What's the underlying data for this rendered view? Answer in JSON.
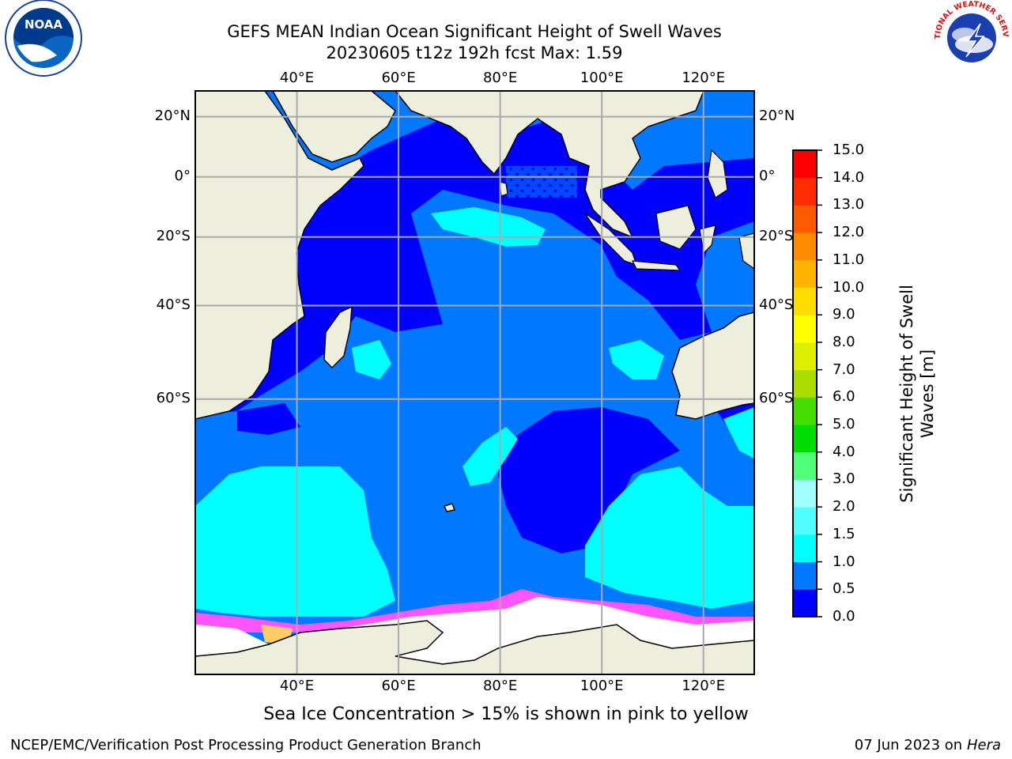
{
  "title": {
    "line1": "GEFS MEAN Indian Ocean Significant Height of Swell Waves",
    "line2": "20230605 t12z 192h fcst   Max: 1.59"
  },
  "logos": {
    "left": "noaa-logo",
    "right": "national-weather-service-logo",
    "left_text": "NOAA",
    "right_text": "NATIONAL WEATHER SERVICE"
  },
  "axes": {
    "lon_labels": [
      "40°E",
      "60°E",
      "80°E",
      "100°E",
      "120°E"
    ],
    "lat_labels": [
      "20°N",
      "0°",
      "20°S",
      "40°S",
      "60°S"
    ],
    "lon_range": [
      20,
      130
    ],
    "lat_range": [
      -84,
      28
    ]
  },
  "colorbar": {
    "label": "Significant Height of Swell Waves [m]",
    "label_line1": "Significant Height of Swell",
    "label_line2": "Waves [m]",
    "ticks": [
      "0.0",
      "0.5",
      "1.0",
      "1.5",
      "2.0",
      "3.0",
      "4.0",
      "5.0",
      "6.0",
      "7.0",
      "8.0",
      "9.0",
      "10.0",
      "11.0",
      "12.0",
      "13.0",
      "14.0",
      "15.0"
    ],
    "colors": [
      "#0000ff",
      "#0078ff",
      "#00ffff",
      "#4fffff",
      "#a0ffff",
      "#50ff78",
      "#00dd00",
      "#44dd00",
      "#aadd00",
      "#ddee00",
      "#ffff00",
      "#ffdd00",
      "#ffb400",
      "#ff8c00",
      "#ff5a00",
      "#ff2d00",
      "#ff0000"
    ]
  },
  "colors": {
    "land": "#eeeedd",
    "ocean_low": "#0000ff",
    "ocean_mid": "#0078ff",
    "ocean_high": "#00ffff",
    "ice": "#ff55ff",
    "grid": "#aaaaaa"
  },
  "subtitle": "Sea Ice Concentration > 15% is shown in pink to yellow",
  "footer": {
    "left": "NCEP/EMC/Verification Post Processing Product Generation Branch",
    "right_date": "07 Jun 2023 on",
    "right_host": "Hera"
  }
}
